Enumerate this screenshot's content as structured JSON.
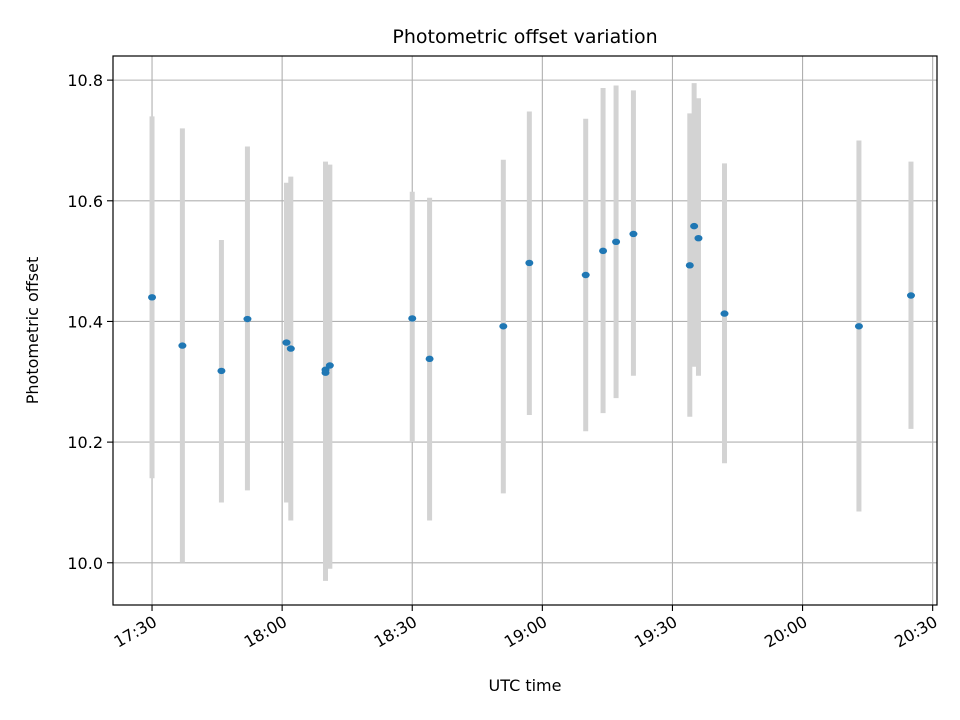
{
  "chart_data": {
    "type": "scatter",
    "title": "Photometric offset variation",
    "xlabel": "UTC time",
    "ylabel": "Photometric offset",
    "x_ticks": [
      "17:30",
      "18:00",
      "18:30",
      "19:00",
      "19:30",
      "20:00",
      "20:30"
    ],
    "y_ticks": [
      "10.0",
      "10.2",
      "10.4",
      "10.6",
      "10.8"
    ],
    "xlim": [
      "17:21",
      "20:31"
    ],
    "ylim": [
      9.93,
      10.84
    ],
    "grid": true,
    "errorbar_color": "#d3d3d3",
    "point_color": "#1f77b4",
    "points": [
      {
        "x": "17:30",
        "y": 10.44,
        "ylow": 10.14,
        "yhigh": 10.74
      },
      {
        "x": "17:37",
        "y": 10.36,
        "ylow": 10.0,
        "yhigh": 10.72
      },
      {
        "x": "17:46",
        "y": 10.318,
        "ylow": 10.1,
        "yhigh": 10.535
      },
      {
        "x": "17:52",
        "y": 10.404,
        "ylow": 10.12,
        "yhigh": 10.69
      },
      {
        "x": "18:01",
        "y": 10.365,
        "ylow": 10.1,
        "yhigh": 10.63
      },
      {
        "x": "18:02",
        "y": 10.355,
        "ylow": 10.07,
        "yhigh": 10.64
      },
      {
        "x": "18:10",
        "y": 10.315,
        "ylow": 9.99,
        "yhigh": 10.64
      },
      {
        "x": "18:10",
        "y": 10.32,
        "ylow": 9.97,
        "yhigh": 10.665
      },
      {
        "x": "18:11",
        "y": 10.327,
        "ylow": 9.99,
        "yhigh": 10.66
      },
      {
        "x": "18:30",
        "y": 10.405,
        "ylow": 10.2,
        "yhigh": 10.615
      },
      {
        "x": "18:34",
        "y": 10.338,
        "ylow": 10.07,
        "yhigh": 10.605
      },
      {
        "x": "18:51",
        "y": 10.392,
        "ylow": 10.115,
        "yhigh": 10.668
      },
      {
        "x": "18:57",
        "y": 10.497,
        "ylow": 10.245,
        "yhigh": 10.748
      },
      {
        "x": "19:10",
        "y": 10.477,
        "ylow": 10.218,
        "yhigh": 10.736
      },
      {
        "x": "19:14",
        "y": 10.517,
        "ylow": 10.248,
        "yhigh": 10.787
      },
      {
        "x": "19:17",
        "y": 10.532,
        "ylow": 10.273,
        "yhigh": 10.791
      },
      {
        "x": "19:21",
        "y": 10.545,
        "ylow": 10.31,
        "yhigh": 10.783
      },
      {
        "x": "19:34",
        "y": 10.493,
        "ylow": 10.242,
        "yhigh": 10.745
      },
      {
        "x": "19:35",
        "y": 10.558,
        "ylow": 10.325,
        "yhigh": 10.795
      },
      {
        "x": "19:36",
        "y": 10.538,
        "ylow": 10.31,
        "yhigh": 10.77
      },
      {
        "x": "19:42",
        "y": 10.413,
        "ylow": 10.165,
        "yhigh": 10.662
      },
      {
        "x": "20:13",
        "y": 10.392,
        "ylow": 10.085,
        "yhigh": 10.7
      },
      {
        "x": "20:25",
        "y": 10.443,
        "ylow": 10.222,
        "yhigh": 10.665
      }
    ]
  }
}
